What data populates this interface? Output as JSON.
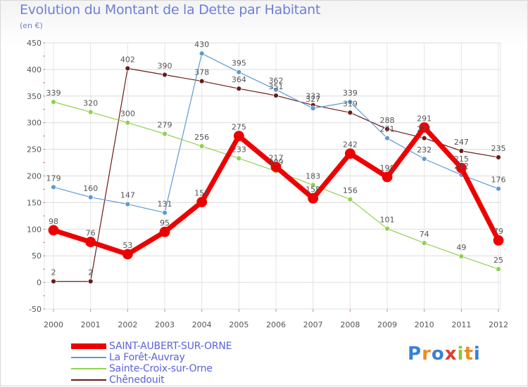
{
  "title": "Evolution du Montant de la Dette par Habitant",
  "subtitle": "(en €)",
  "brand": {
    "letters": [
      "P",
      "r",
      "o",
      "x",
      "i",
      "t",
      "i"
    ],
    "colors": [
      "#3a7fd5",
      "#f08a1c",
      "#3a7fd5",
      "#e23b2d",
      "#8cc63f",
      "#f08a1c",
      "#3a7fd5"
    ]
  },
  "chart_data": {
    "type": "line",
    "title": "Evolution du Montant de la Dette par Habitant",
    "ylabel": "(en €)",
    "xlabel": "",
    "ylim": [
      -50,
      450
    ],
    "yticks": [
      -50,
      0,
      50,
      100,
      150,
      200,
      250,
      300,
      350,
      400,
      450
    ],
    "grid": true,
    "legend_position": "bottom-left",
    "categories": [
      "2000",
      "2001",
      "2002",
      "2003",
      "2004",
      "2005",
      "2006",
      "2007",
      "2008",
      "2009",
      "2010",
      "2011",
      "2012"
    ],
    "series": [
      {
        "name": "Chênedouit",
        "color": "#6b1a1a",
        "width": 1.2,
        "marker": 3.5,
        "values": [
          2,
          2,
          402,
          390,
          378,
          364,
          351,
          333,
          319,
          288,
          271,
          247,
          235
        ],
        "labels": [
          "2",
          "2",
          "402",
          "390",
          "378",
          "364",
          "351",
          "333",
          "319",
          "288",
          "271",
          "247",
          "235"
        ]
      },
      {
        "name": "La Forêt-Auvray",
        "color": "#5b9bd5",
        "width": 1.2,
        "marker": 3.5,
        "values": [
          179,
          160,
          147,
          131,
          430,
          395,
          362,
          327,
          339,
          271,
          232,
          202,
          176
        ],
        "labels": [
          "179",
          "160",
          "147",
          "131",
          "430",
          "395",
          "362",
          "327",
          "339",
          "271",
          "232",
          "202",
          "176"
        ]
      },
      {
        "name": "Sainte-Croix-sur-Orne",
        "color": "#8fd14f",
        "width": 1.2,
        "marker": 3.5,
        "values": [
          339,
          320,
          300,
          279,
          256,
          233,
          209,
          183,
          156,
          101,
          74,
          49,
          25
        ],
        "labels": [
          "339",
          "320",
          "300",
          "279",
          "256",
          "233",
          "209",
          "183",
          "156",
          "101",
          "74",
          "49",
          "25"
        ]
      },
      {
        "name": "SAINT-AUBERT-SUR-ORNE",
        "color": "#ee0000",
        "width": 7,
        "marker": 7,
        "values": [
          98,
          76,
          53,
          95,
          151,
          275,
          217,
          158,
          242,
          198,
          291,
          215,
          79
        ],
        "labels": [
          "98",
          "76",
          "53",
          "95",
          "151",
          "275",
          "217",
          "158",
          "242",
          "198",
          "291",
          "215",
          "79"
        ]
      }
    ],
    "legend_order": [
      "SAINT-AUBERT-SUR-ORNE",
      "La Forêt-Auvray",
      "Sainte-Croix-sur-Orne",
      "Chênedouit"
    ]
  }
}
